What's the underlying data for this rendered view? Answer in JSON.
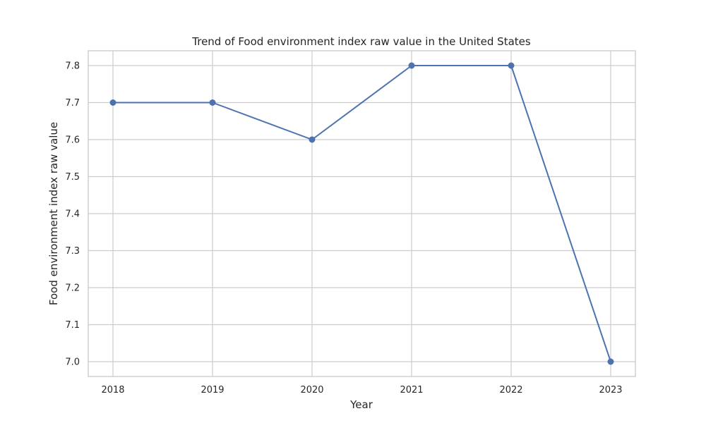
{
  "chart_data": {
    "type": "line",
    "title": "Trend of Food environment index raw value in the United States",
    "xlabel": "Year",
    "ylabel": "Food environment index raw value",
    "categories": [
      "2018",
      "2019",
      "2020",
      "2021",
      "2022",
      "2023"
    ],
    "values": [
      7.7,
      7.7,
      7.6,
      7.8,
      7.8,
      7.0
    ],
    "y_ticks": [
      "7.0",
      "7.1",
      "7.2",
      "7.3",
      "7.4",
      "7.5",
      "7.6",
      "7.7",
      "7.8"
    ],
    "ylim": [
      6.96,
      7.84
    ],
    "grid": true,
    "marker": "circle",
    "line_color": "#4c72b0",
    "grid_color": "#cccccc"
  }
}
